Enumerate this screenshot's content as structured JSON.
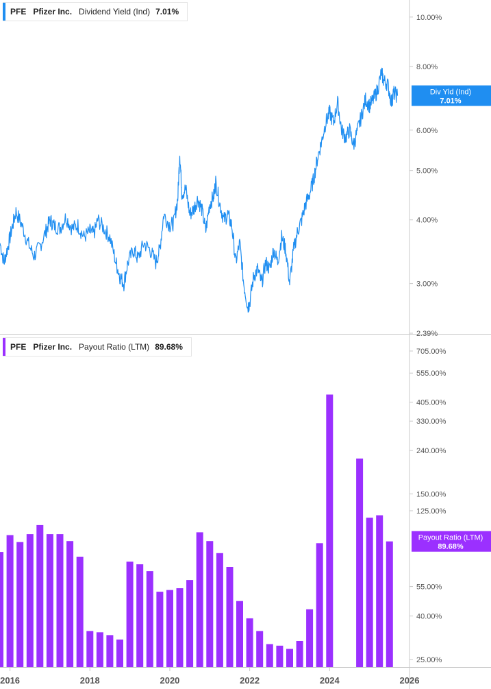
{
  "colors": {
    "yield": "#1f8ef1",
    "payout": "#9b30ff",
    "axis": "#c8c8c8",
    "text": "#555555"
  },
  "legend_top": {
    "symbol": "PFE",
    "company": "Pfizer Inc.",
    "metric": "Dividend Yield (Ind)",
    "value": "7.01%"
  },
  "legend_bottom": {
    "symbol": "PFE",
    "company": "Pfizer Inc.",
    "metric": "Payout Ratio (LTM)",
    "value": "89.68%"
  },
  "x_axis": {
    "range": [
      2015.75,
      2026.0
    ],
    "ticks": [
      2016,
      2018,
      2020,
      2022,
      2024,
      2026
    ],
    "tick_labels": [
      "2016",
      "2018",
      "2020",
      "2022",
      "2024",
      "2026"
    ]
  },
  "chart_data": [
    {
      "type": "line",
      "name": "Dividend Yield (Ind)",
      "scale": "log",
      "ylim": [
        2.39,
        10.8
      ],
      "y_ticks": [
        10,
        8,
        6,
        5,
        4,
        3
      ],
      "y_tick_labels": [
        "10.00%",
        "8.00%",
        "6.00%",
        "5.00%",
        "4.00%",
        "3.00%"
      ],
      "y_min_label": "2.39%",
      "last_value_label": {
        "title": "Div Yld (Ind)",
        "value": "7.01%",
        "y": 7.01
      },
      "points": [
        [
          2015.75,
          3.6
        ],
        [
          2015.85,
          3.3
        ],
        [
          2015.95,
          3.55
        ],
        [
          2016.05,
          3.85
        ],
        [
          2016.15,
          4.15
        ],
        [
          2016.3,
          3.9
        ],
        [
          2016.45,
          3.6
        ],
        [
          2016.6,
          3.4
        ],
        [
          2016.75,
          3.55
        ],
        [
          2016.9,
          3.8
        ],
        [
          2017.0,
          4.0
        ],
        [
          2017.1,
          3.9
        ],
        [
          2017.25,
          3.85
        ],
        [
          2017.4,
          4.05
        ],
        [
          2017.55,
          3.85
        ],
        [
          2017.7,
          3.9
        ],
        [
          2017.85,
          3.7
        ],
        [
          2018.0,
          3.8
        ],
        [
          2018.1,
          3.75
        ],
        [
          2018.2,
          4.0
        ],
        [
          2018.35,
          3.85
        ],
        [
          2018.5,
          3.7
        ],
        [
          2018.65,
          3.3
        ],
        [
          2018.75,
          3.1
        ],
        [
          2018.85,
          3.0
        ],
        [
          2018.95,
          3.3
        ],
        [
          2019.1,
          3.5
        ],
        [
          2019.2,
          3.35
        ],
        [
          2019.35,
          3.6
        ],
        [
          2019.5,
          3.5
        ],
        [
          2019.65,
          3.3
        ],
        [
          2019.75,
          3.5
        ],
        [
          2019.85,
          4.1
        ],
        [
          2020.0,
          3.9
        ],
        [
          2020.1,
          3.95
        ],
        [
          2020.2,
          4.4
        ],
        [
          2020.25,
          5.4
        ],
        [
          2020.3,
          4.5
        ],
        [
          2020.4,
          4.6
        ],
        [
          2020.5,
          4.1
        ],
        [
          2020.6,
          4.2
        ],
        [
          2020.7,
          4.4
        ],
        [
          2020.8,
          4.2
        ],
        [
          2020.9,
          3.8
        ],
        [
          2021.0,
          4.3
        ],
        [
          2021.1,
          4.45
        ],
        [
          2021.15,
          4.75
        ],
        [
          2021.25,
          4.3
        ],
        [
          2021.35,
          4.0
        ],
        [
          2021.45,
          4.1
        ],
        [
          2021.55,
          3.9
        ],
        [
          2021.65,
          3.3
        ],
        [
          2021.75,
          3.6
        ],
        [
          2021.85,
          3.0
        ],
        [
          2021.95,
          2.7
        ],
        [
          2022.0,
          2.75
        ],
        [
          2022.1,
          3.1
        ],
        [
          2022.2,
          3.2
        ],
        [
          2022.3,
          3.0
        ],
        [
          2022.4,
          3.3
        ],
        [
          2022.5,
          3.2
        ],
        [
          2022.6,
          3.5
        ],
        [
          2022.7,
          3.3
        ],
        [
          2022.8,
          3.7
        ],
        [
          2022.9,
          3.5
        ],
        [
          2023.0,
          3.0
        ],
        [
          2023.1,
          3.5
        ],
        [
          2023.2,
          3.8
        ],
        [
          2023.3,
          4.0
        ],
        [
          2023.4,
          4.3
        ],
        [
          2023.5,
          4.5
        ],
        [
          2023.6,
          4.8
        ],
        [
          2023.7,
          5.3
        ],
        [
          2023.8,
          5.7
        ],
        [
          2023.9,
          6.2
        ],
        [
          2024.0,
          6.5
        ],
        [
          2024.1,
          6.2
        ],
        [
          2024.2,
          6.8
        ],
        [
          2024.3,
          6.0
        ],
        [
          2024.4,
          5.8
        ],
        [
          2024.5,
          6.0
        ],
        [
          2024.6,
          5.6
        ],
        [
          2024.7,
          6.0
        ],
        [
          2024.8,
          6.4
        ],
        [
          2024.9,
          6.9
        ],
        [
          2025.0,
          6.7
        ],
        [
          2025.1,
          6.9
        ],
        [
          2025.2,
          7.2
        ],
        [
          2025.3,
          7.8
        ],
        [
          2025.35,
          7.5
        ],
        [
          2025.45,
          7.4
        ],
        [
          2025.55,
          6.8
        ],
        [
          2025.6,
          7.1
        ],
        [
          2025.7,
          7.01
        ]
      ]
    },
    {
      "type": "bar",
      "name": "Payout Ratio (LTM)",
      "scale": "log",
      "ylim": [
        23.0,
        830.0
      ],
      "y_ticks": [
        705,
        555,
        405,
        330,
        240,
        150,
        125,
        55,
        40,
        25
      ],
      "y_tick_labels": [
        "705.00%",
        "555.00%",
        "405.00%",
        "330.00%",
        "240.00%",
        "150.00%",
        "125.00%",
        "55.00%",
        "40.00%",
        "25.00%"
      ],
      "last_value_label": {
        "title": "Payout Ratio (LTM)",
        "value": "89.68%",
        "y": 89.68
      },
      "bars": [
        [
          2015.75,
          80
        ],
        [
          2016.0,
          96
        ],
        [
          2016.25,
          89
        ],
        [
          2016.5,
          97
        ],
        [
          2016.75,
          107
        ],
        [
          2017.0,
          97
        ],
        [
          2017.25,
          97
        ],
        [
          2017.5,
          90
        ],
        [
          2017.75,
          76
        ],
        [
          2018.0,
          34
        ],
        [
          2018.25,
          33.5
        ],
        [
          2018.5,
          32.5
        ],
        [
          2018.75,
          31
        ],
        [
          2019.0,
          72
        ],
        [
          2019.25,
          70
        ],
        [
          2019.5,
          65
        ],
        [
          2019.75,
          52
        ],
        [
          2020.0,
          53
        ],
        [
          2020.25,
          54
        ],
        [
          2020.5,
          59
        ],
        [
          2020.75,
          99
        ],
        [
          2021.0,
          90
        ],
        [
          2021.25,
          79
        ],
        [
          2021.5,
          68
        ],
        [
          2021.75,
          47
        ],
        [
          2022.0,
          39
        ],
        [
          2022.25,
          34
        ],
        [
          2022.5,
          29.5
        ],
        [
          2022.75,
          29
        ],
        [
          2023.0,
          28
        ],
        [
          2023.25,
          30.5
        ],
        [
          2023.5,
          43
        ],
        [
          2023.75,
          88
        ],
        [
          2024.0,
          440
        ],
        [
          2024.75,
          220
        ],
        [
          2025.0,
          116
        ],
        [
          2025.25,
          119
        ],
        [
          2025.5,
          89.68
        ]
      ]
    }
  ]
}
